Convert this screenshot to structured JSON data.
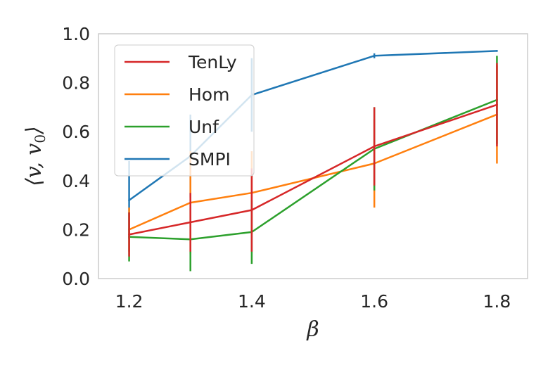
{
  "chart_data": {
    "type": "line",
    "title": "",
    "xlabel": "β",
    "ylabel": "⟨v, v0⟩",
    "xlim": [
      1.15,
      1.85
    ],
    "ylim": [
      0.0,
      1.0
    ],
    "xticks": [
      1.2,
      1.4,
      1.6,
      1.8
    ],
    "xtick_labels": [
      "1.2",
      "1.4",
      "1.6",
      "1.8"
    ],
    "yticks": [
      0.0,
      0.2,
      0.4,
      0.6,
      0.8,
      1.0
    ],
    "ytick_labels": [
      "0.0",
      "0.2",
      "0.4",
      "0.6",
      "0.8",
      "1.0"
    ],
    "grid": false,
    "legend_position": "top-left",
    "series": [
      {
        "name": "SMPI",
        "color": "#1f77b4",
        "x": [
          1.2,
          1.3,
          1.4,
          1.6,
          1.8
        ],
        "y": [
          0.32,
          0.5,
          0.75,
          0.91,
          0.93
        ],
        "err": [
          0.16,
          0.17,
          0.15,
          0.01,
          0.0
        ]
      },
      {
        "name": "Hom",
        "color": "#ff7f0e",
        "x": [
          1.2,
          1.3,
          1.4,
          1.6,
          1.8
        ],
        "y": [
          0.2,
          0.31,
          0.35,
          0.47,
          0.67
        ],
        "err": [
          0.09,
          0.21,
          0.17,
          0.18,
          0.2
        ]
      },
      {
        "name": "Unf",
        "color": "#2ca02c",
        "x": [
          1.2,
          1.3,
          1.4,
          1.6,
          1.8
        ],
        "y": [
          0.17,
          0.16,
          0.19,
          0.53,
          0.73
        ],
        "err": [
          0.1,
          0.13,
          0.13,
          0.17,
          0.18
        ]
      },
      {
        "name": "TenLy",
        "color": "#d62728",
        "x": [
          1.2,
          1.3,
          1.4,
          1.6,
          1.8
        ],
        "y": [
          0.18,
          0.23,
          0.28,
          0.54,
          0.71
        ],
        "err": [
          0.09,
          0.12,
          0.17,
          0.16,
          0.17
        ]
      }
    ],
    "legend_order": [
      "TenLy",
      "Hom",
      "Unf",
      "SMPI"
    ]
  }
}
